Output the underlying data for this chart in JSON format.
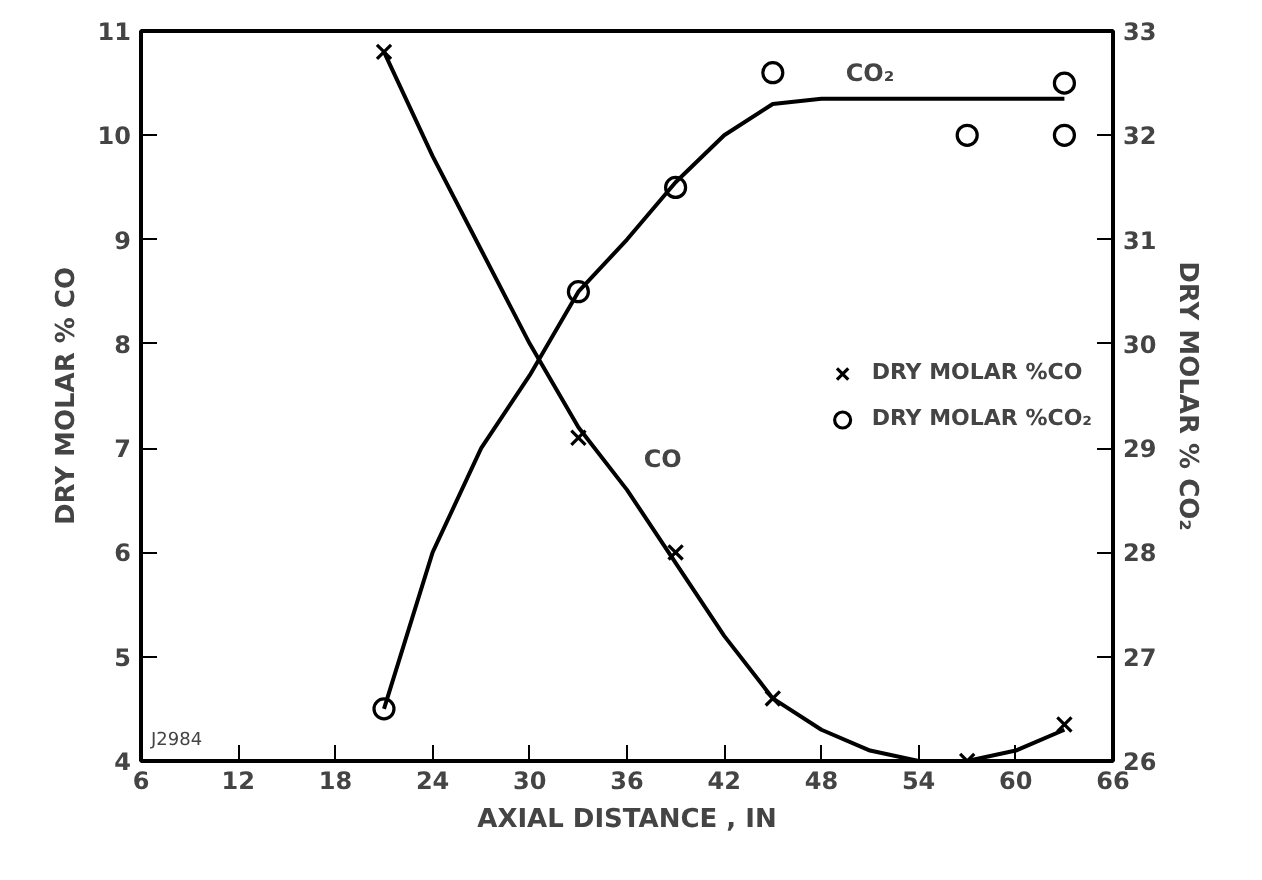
{
  "chart_data": {
    "type": "scatter",
    "xlabel": "AXIAL DISTANCE , IN",
    "ylabel": "DRY MOLAR % CO",
    "y2label": "DRY MOLAR % CO₂",
    "xlim": [
      6,
      66
    ],
    "xticks": [
      6,
      12,
      18,
      24,
      30,
      36,
      42,
      48,
      54,
      60,
      66
    ],
    "ylim": [
      4,
      11
    ],
    "yticks": [
      4,
      5,
      6,
      7,
      8,
      9,
      10,
      11
    ],
    "y2lim": [
      26,
      33
    ],
    "y2ticks": [
      26,
      27,
      28,
      29,
      30,
      31,
      32,
      33
    ],
    "grid": false,
    "legend": "right",
    "series": [
      {
        "name": "DRY MOLAR %CO",
        "color": "#000000",
        "marker": "cross",
        "x": [
          21,
          33,
          39,
          45,
          57,
          63
        ],
        "values": [
          10.8,
          7.1,
          6.0,
          4.6,
          4.0,
          4.35
        ]
      },
      {
        "name": "DRY MOLAR %CO₂",
        "color": "#000000",
        "marker": "circle",
        "axis": "y2",
        "x": [
          21,
          33,
          39,
          45,
          57,
          63,
          63
        ],
        "values": [
          26.5,
          30.5,
          31.5,
          32.6,
          32.0,
          32.5,
          32.0
        ]
      },
      {
        "type": "line",
        "color": "#000000",
        "x": [
          21,
          24,
          27,
          30,
          33,
          36,
          39,
          42,
          45,
          48,
          51,
          54,
          57,
          60,
          63
        ],
        "values": [
          10.8,
          9.8,
          8.9,
          8.0,
          7.2,
          6.6,
          5.9,
          5.2,
          4.6,
          4.3,
          4.1,
          4.0,
          4.0,
          4.1,
          4.3
        ]
      },
      {
        "type": "line",
        "color": "#000000",
        "axis": "y2",
        "x": [
          21,
          24,
          27,
          30,
          33,
          36,
          39,
          42,
          45,
          48,
          54,
          63
        ],
        "values": [
          26.5,
          28.0,
          29.0,
          29.7,
          30.5,
          31.0,
          31.55,
          32.0,
          32.3,
          32.35,
          32.35,
          32.35
        ]
      }
    ],
    "annotations": [
      "CO",
      "CO₂",
      "J2984"
    ]
  }
}
